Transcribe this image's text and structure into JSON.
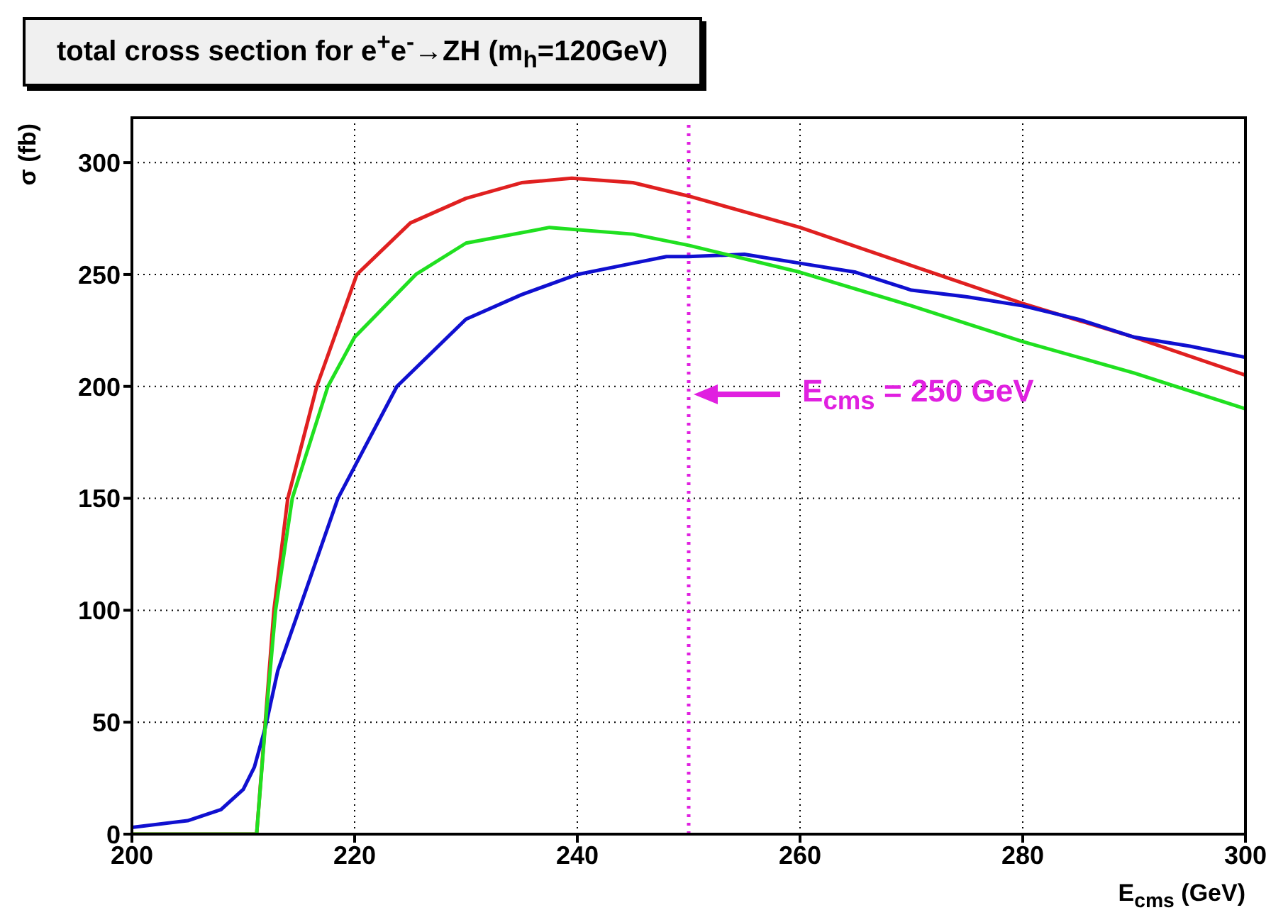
{
  "chart_data": {
    "type": "line",
    "title": "total cross section for e$^{+}$e$^{-}$→ZH (m$_{h}$=120GeV)",
    "xlabel": "E$_{cms}$ (GeV)",
    "ylabel": "σ (fb)",
    "xlim": [
      200,
      300
    ],
    "xticks": [
      200,
      220,
      240,
      260,
      280,
      300
    ],
    "ylim": [
      0,
      320
    ],
    "yticks": [
      0,
      50,
      100,
      150,
      200,
      250,
      300
    ],
    "grid": true,
    "legend": false,
    "marker": "none",
    "line_style": "solid",
    "series": [
      {
        "color": "#e02020",
        "x": [
          200,
          211.2,
          212.75,
          214,
          216.6,
          220.2,
          225,
          230,
          235,
          239.5,
          245,
          250,
          260,
          270,
          280,
          290,
          300
        ],
        "values": [
          0,
          0,
          100,
          150,
          200,
          250,
          273,
          284,
          291,
          293,
          291,
          285,
          271,
          254,
          237,
          222,
          205
        ]
      },
      {
        "color": "#1010d0",
        "x": [
          200,
          205,
          208,
          210,
          211,
          212,
          213.1,
          215,
          218.5,
          223.8,
          230,
          235,
          240,
          245,
          248,
          250,
          255,
          260,
          265,
          270,
          275,
          280,
          285,
          290,
          295,
          300
        ],
        "values": [
          3,
          6,
          11,
          20,
          30,
          48,
          73,
          100,
          150,
          200,
          230,
          241,
          250,
          255,
          258,
          258,
          259,
          255,
          251,
          243,
          240,
          236,
          230,
          222,
          218,
          213
        ]
      },
      {
        "color": "#20e020",
        "x": [
          200,
          211.2,
          212,
          212.9,
          214.4,
          217.6,
          220,
          225.5,
          230,
          237.5,
          245,
          250,
          260,
          270,
          280,
          290,
          300
        ],
        "values": [
          0,
          0,
          50,
          100,
          150,
          200,
          222,
          250,
          264,
          271,
          268,
          263,
          251,
          236,
          220,
          206,
          190
        ]
      }
    ],
    "ref_lines": [
      {
        "axis": "x",
        "value": 250,
        "color": "#e020e0",
        "line_style": "dotted"
      }
    ],
    "annotations": [
      "E$_{cms}$ = 250 GeV"
    ]
  }
}
